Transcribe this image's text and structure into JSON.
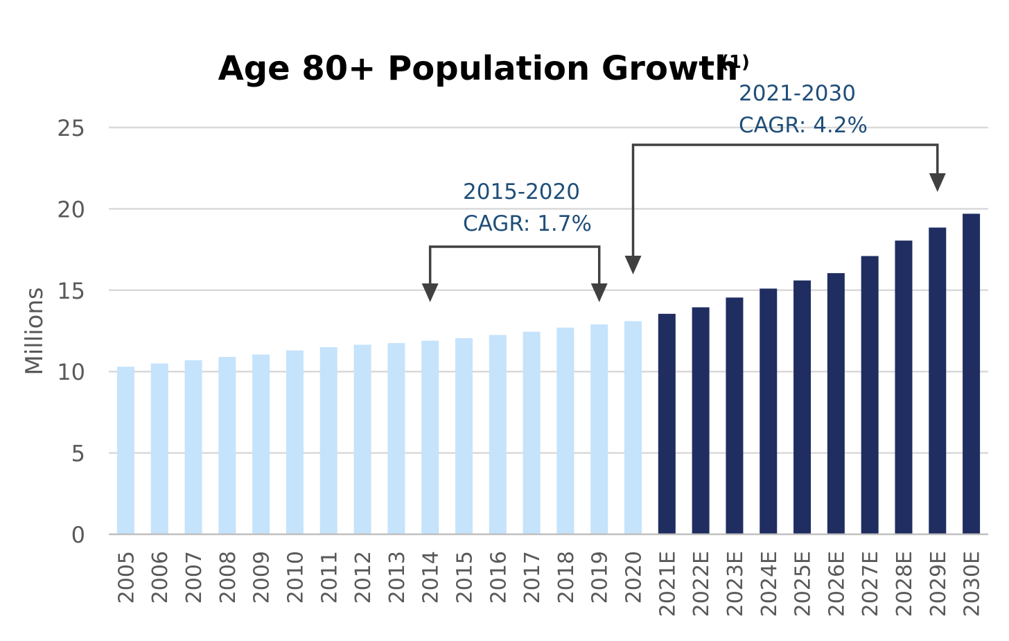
{
  "chart_data": {
    "type": "bar",
    "title": "Age 80+ Population Growth",
    "title_superscript": "(1)",
    "xlabel": "",
    "ylabel": "Millions",
    "ylim": [
      0,
      25
    ],
    "yticks": [
      0,
      5,
      10,
      15,
      20,
      25
    ],
    "grid": true,
    "legend": "none",
    "categories": [
      "2005",
      "2006",
      "2007",
      "2008",
      "2009",
      "2010",
      "2011",
      "2012",
      "2013",
      "2014",
      "2015",
      "2016",
      "2017",
      "2018",
      "2019",
      "2020",
      "2021E",
      "2022E",
      "2023E",
      "2024E",
      "2025E",
      "2026E",
      "2027E",
      "2028E",
      "2029E",
      "2030E"
    ],
    "values": [
      10.3,
      10.5,
      10.7,
      10.9,
      11.05,
      11.3,
      11.5,
      11.65,
      11.75,
      11.9,
      12.05,
      12.25,
      12.45,
      12.7,
      12.9,
      13.1,
      13.55,
      13.95,
      14.55,
      15.1,
      15.6,
      16.05,
      17.1,
      18.05,
      18.85,
      19.7
    ],
    "bar_colors": {
      "historical": "#C5E3FB",
      "estimate": "#1F2D61"
    },
    "historical_count": 16,
    "annotations": [
      {
        "label_line1": "2015-2020",
        "label_line2": "CAGR: 1.7%",
        "from_category": "2014",
        "to_category": "2019"
      },
      {
        "label_line1": "2021-2030",
        "label_line2": "CAGR: 4.2%",
        "from_category": "2020",
        "to_category": "2029E"
      }
    ],
    "colors": {
      "grid": "#D9D9D9",
      "axis": "#BFBFBF",
      "tick_text": "#595959",
      "annotation_text": "#1F4E79",
      "arrow": "#404040"
    }
  }
}
